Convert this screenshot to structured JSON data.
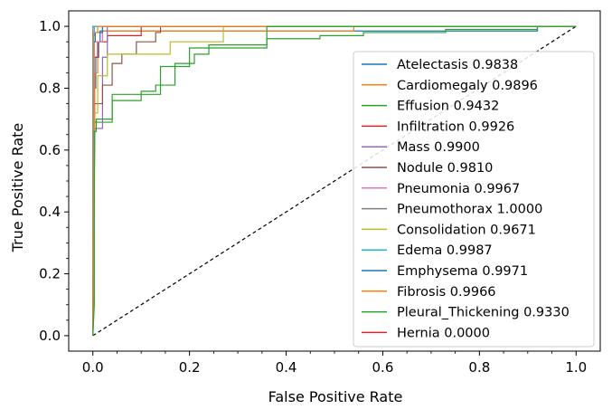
{
  "chart_data": {
    "type": "line",
    "xlabel": "False Positive Rate",
    "ylabel": "True Positive Rate",
    "xlim": [
      -0.05,
      1.05
    ],
    "ylim": [
      -0.05,
      1.05
    ],
    "xticks": [
      0.0,
      0.2,
      0.4,
      0.6,
      0.8,
      1.0
    ],
    "xtick_labels": [
      "0.0",
      "0.2",
      "0.4",
      "0.6",
      "0.8",
      "1.0"
    ],
    "yticks": [
      0.0,
      0.2,
      0.4,
      0.6,
      0.8,
      1.0
    ],
    "ytick_labels": [
      "0.0",
      "0.2",
      "0.4",
      "0.6",
      "0.8",
      "1.0"
    ],
    "grid": false,
    "legend_position": "lower-right",
    "diagonal": {
      "x": [
        0,
        1
      ],
      "y": [
        0,
        1
      ],
      "color": "#000000",
      "style": "dashed"
    },
    "series": [
      {
        "name": "Atelectasis 0.9838",
        "color": "#1f77b4",
        "x": [
          0,
          0.003,
          0.003,
          0.006,
          0.006,
          0.012,
          0.012,
          0.015,
          0.015,
          0.92,
          0.92,
          1.0
        ],
        "y": [
          0,
          0.55,
          0.8,
          0.8,
          0.9,
          0.9,
          0.95,
          0.95,
          0.985,
          0.985,
          1.0,
          1.0
        ]
      },
      {
        "name": "Cardiomegaly 0.9896",
        "color": "#ff7f0e",
        "x": [
          0,
          0.004,
          0.004,
          0.01,
          0.01,
          0.02,
          0.02,
          0.54,
          0.54,
          1.0
        ],
        "y": [
          0,
          0.7,
          0.85,
          0.85,
          0.95,
          0.95,
          0.985,
          0.985,
          1.0,
          1.0
        ]
      },
      {
        "name": "Effusion 0.9432",
        "color": "#2ca02c",
        "x": [
          0,
          0.002,
          0.002,
          0.04,
          0.04,
          0.1,
          0.1,
          0.13,
          0.13,
          0.17,
          0.17,
          0.21,
          0.21,
          0.24,
          0.24,
          0.36,
          0.36,
          0.47,
          0.47,
          0.56,
          0.56,
          0.73,
          0.73,
          0.92,
          0.92,
          1.0
        ],
        "y": [
          0,
          0.1,
          0.69,
          0.69,
          0.76,
          0.76,
          0.79,
          0.79,
          0.81,
          0.81,
          0.88,
          0.88,
          0.91,
          0.91,
          0.94,
          0.94,
          0.96,
          0.96,
          0.97,
          0.97,
          0.98,
          0.98,
          0.99,
          0.99,
          1.0,
          1.0
        ]
      },
      {
        "name": "Infiltration 0.9926",
        "color": "#d62728",
        "x": [
          0,
          0.002,
          0.002,
          0.01,
          0.01,
          0.03,
          0.03,
          0.1,
          0.1,
          1.0
        ],
        "y": [
          0,
          0.5,
          0.9,
          0.9,
          0.95,
          0.95,
          0.97,
          0.97,
          1.0,
          1.0
        ]
      },
      {
        "name": "Mass 0.9900",
        "color": "#9467bd",
        "x": [
          0,
          0.004,
          0.004,
          0.02,
          0.02,
          0.03,
          0.03,
          1.0
        ],
        "y": [
          0,
          0.62,
          0.67,
          0.67,
          0.9,
          0.9,
          1.0,
          1.0
        ]
      },
      {
        "name": "Nodule 0.9810",
        "color": "#8c564b",
        "x": [
          0,
          0.003,
          0.003,
          0.02,
          0.02,
          0.04,
          0.04,
          0.06,
          0.06,
          0.09,
          0.09,
          0.13,
          0.13,
          0.14,
          0.14,
          1.0
        ],
        "y": [
          0,
          0.6,
          0.75,
          0.75,
          0.81,
          0.81,
          0.88,
          0.88,
          0.91,
          0.91,
          0.95,
          0.95,
          0.98,
          0.98,
          1.0,
          1.0
        ]
      },
      {
        "name": "Pneumonia 0.9967",
        "color": "#e377c2",
        "x": [
          0,
          0.003,
          0.003,
          0.02,
          0.02,
          1.0
        ],
        "y": [
          0,
          0.7,
          0.95,
          0.95,
          1.0,
          1.0
        ]
      },
      {
        "name": "Pneumothorax 1.0000",
        "color": "#7f7f7f",
        "x": [
          0,
          0,
          1.0
        ],
        "y": [
          0,
          1.0,
          1.0
        ]
      },
      {
        "name": "Consolidation 0.9671",
        "color": "#bcbd22",
        "x": [
          0,
          0.003,
          0.003,
          0.01,
          0.01,
          0.03,
          0.03,
          0.16,
          0.16,
          0.27,
          0.27,
          1.0
        ],
        "y": [
          0,
          0.55,
          0.72,
          0.72,
          0.84,
          0.84,
          0.91,
          0.91,
          0.95,
          0.95,
          1.0,
          1.0
        ]
      },
      {
        "name": "Edema 0.9987",
        "color": "#17becf",
        "x": [
          0,
          0.001,
          0.001,
          0.003,
          0.003,
          1.0
        ],
        "y": [
          0,
          0.7,
          0.97,
          0.97,
          1.0,
          1.0
        ]
      },
      {
        "name": "Emphysema 0.9971",
        "color": "#1f77b4",
        "x": [
          0,
          0.002,
          0.002,
          0.005,
          0.005,
          0.02,
          0.02,
          1.0
        ],
        "y": [
          0,
          0.8,
          0.95,
          0.95,
          0.98,
          0.98,
          1.0,
          1.0
        ]
      },
      {
        "name": "Fibrosis 0.9966",
        "color": "#ff7f0e",
        "x": [
          0,
          0.002,
          0.002,
          0.01,
          0.01,
          1.0
        ],
        "y": [
          0,
          0.75,
          0.98,
          0.98,
          1.0,
          1.0
        ]
      },
      {
        "name": "Pleural_Thickening 0.9330",
        "color": "#2ca02c",
        "x": [
          0,
          0.003,
          0.003,
          0.007,
          0.007,
          0.04,
          0.04,
          0.14,
          0.14,
          0.2,
          0.2,
          0.36,
          0.36,
          1.0
        ],
        "y": [
          0,
          0.1,
          0.66,
          0.66,
          0.7,
          0.7,
          0.78,
          0.78,
          0.87,
          0.87,
          0.93,
          0.93,
          1.0,
          1.0
        ]
      },
      {
        "name": "Hernia 0.0000",
        "color": "#d62728",
        "x": [],
        "y": []
      }
    ]
  }
}
